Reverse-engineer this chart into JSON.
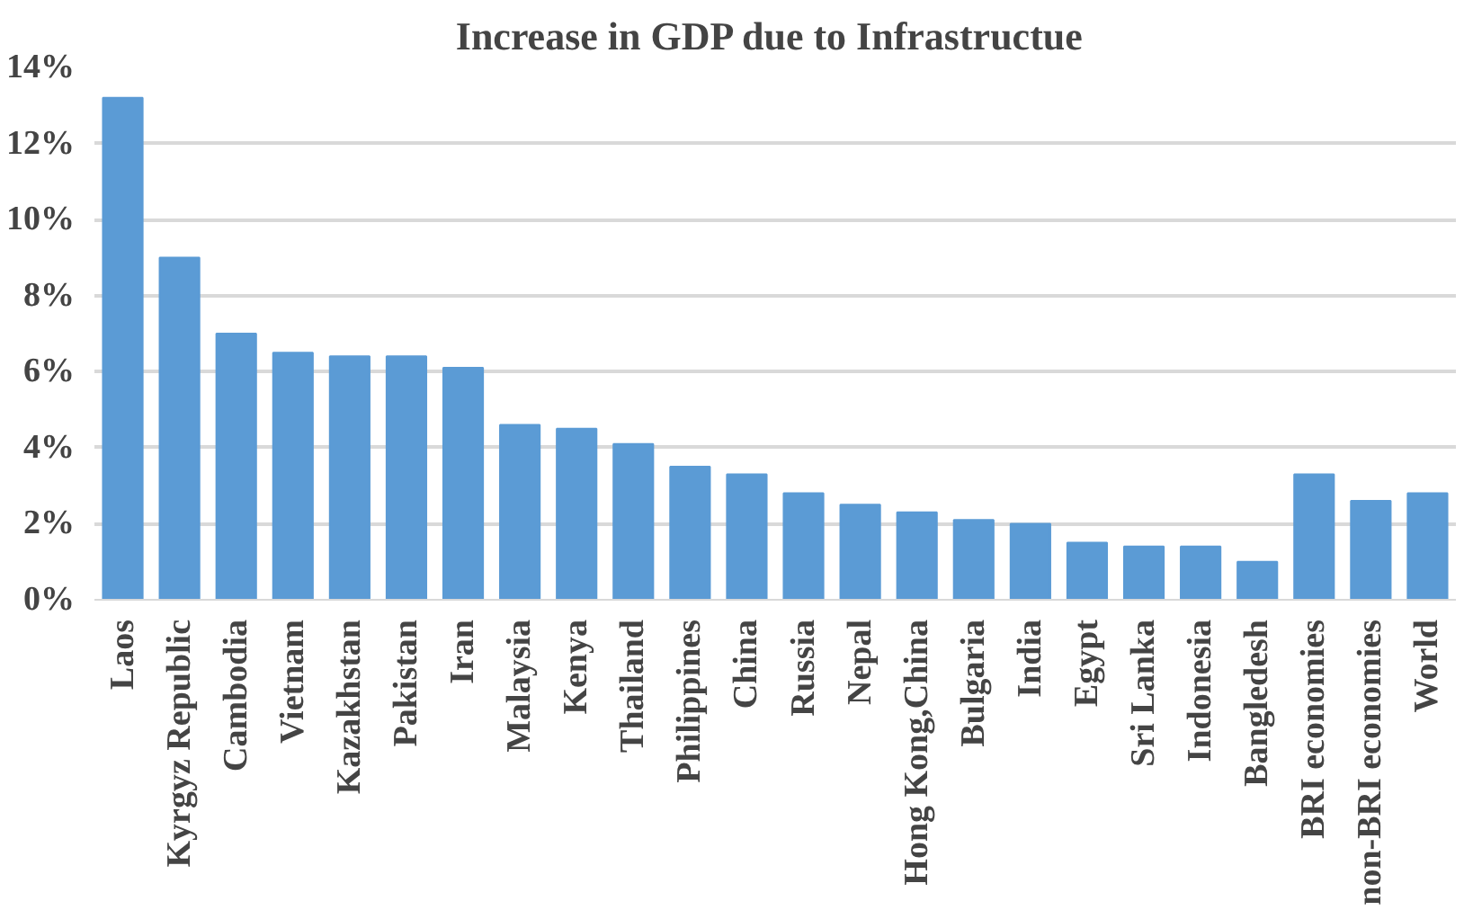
{
  "chart_data": {
    "type": "bar",
    "title": "Increase in GDP  due to Infrastructue",
    "categories": [
      "Laos",
      "Kyrgyz Republic",
      "Cambodia",
      "Vietnam",
      "Kazakhstan",
      "Pakistan",
      "Iran",
      "Malaysia",
      "Kenya",
      "Thailand",
      "Philippines",
      "China",
      "Russia",
      "Nepal",
      "Hong Kong,China",
      "Bulgaria",
      "India",
      "Egypt",
      "Sri Lanka",
      "Indonesia",
      "Bangledesh",
      "BRI economies",
      "non-BRI economies",
      "World"
    ],
    "values": [
      13.2,
      9.0,
      7.0,
      6.5,
      6.4,
      6.4,
      6.1,
      4.6,
      4.5,
      4.1,
      3.5,
      3.3,
      2.8,
      2.5,
      2.3,
      2.1,
      2.0,
      1.5,
      1.4,
      1.4,
      1.0,
      3.3,
      2.6,
      2.8
    ],
    "color": "#5b9bd5",
    "ylim": [
      0,
      14
    ],
    "yticks": [
      {
        "value": 0,
        "label": "0%"
      },
      {
        "value": 2,
        "label": "2%"
      },
      {
        "value": 4,
        "label": "4%"
      },
      {
        "value": 6,
        "label": "6%"
      },
      {
        "value": 8,
        "label": "8%"
      },
      {
        "value": 10,
        "label": "10%"
      },
      {
        "value": 12,
        "label": "12%"
      },
      {
        "value": 14,
        "label": "14%"
      }
    ],
    "grid": "y"
  }
}
